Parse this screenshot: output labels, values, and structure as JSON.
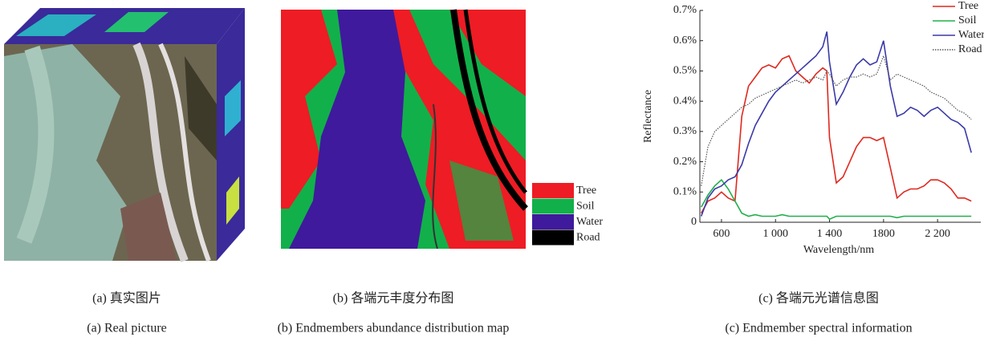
{
  "chart_data": {
    "type": "line",
    "x_label": "Wavelength/nm",
    "y_label": "Reflectance",
    "x": [
      450,
      500,
      550,
      600,
      650,
      700,
      750,
      800,
      850,
      900,
      950,
      1000,
      1050,
      1100,
      1150,
      1200,
      1250,
      1300,
      1350,
      1380,
      1400,
      1450,
      1500,
      1550,
      1600,
      1650,
      1700,
      1750,
      1800,
      1850,
      1900,
      1950,
      2000,
      2050,
      2100,
      2150,
      2200,
      2250,
      2300,
      2350,
      2400,
      2450
    ],
    "series": [
      {
        "name": "Tree",
        "color": "#e0281e",
        "style": "solid",
        "values": [
          0.03,
          0.07,
          0.08,
          0.1,
          0.08,
          0.07,
          0.35,
          0.45,
          0.48,
          0.51,
          0.52,
          0.51,
          0.54,
          0.55,
          0.5,
          0.48,
          0.46,
          0.49,
          0.51,
          0.5,
          0.28,
          0.13,
          0.15,
          0.2,
          0.25,
          0.28,
          0.28,
          0.27,
          0.28,
          0.18,
          0.08,
          0.1,
          0.11,
          0.11,
          0.12,
          0.14,
          0.14,
          0.13,
          0.11,
          0.08,
          0.08,
          0.07
        ]
      },
      {
        "name": "Soil",
        "color": "#20b04a",
        "style": "solid",
        "values": [
          0.05,
          0.09,
          0.12,
          0.14,
          0.11,
          0.07,
          0.03,
          0.02,
          0.025,
          0.02,
          0.02,
          0.02,
          0.025,
          0.02,
          0.02,
          0.02,
          0.02,
          0.02,
          0.02,
          0.02,
          0.01,
          0.02,
          0.02,
          0.02,
          0.02,
          0.02,
          0.02,
          0.02,
          0.02,
          0.02,
          0.015,
          0.02,
          0.02,
          0.02,
          0.02,
          0.02,
          0.02,
          0.02,
          0.02,
          0.02,
          0.02,
          0.02
        ]
      },
      {
        "name": "Water",
        "color": "#3a3aa8",
        "style": "solid",
        "values": [
          0.02,
          0.08,
          0.11,
          0.12,
          0.14,
          0.15,
          0.19,
          0.26,
          0.32,
          0.36,
          0.4,
          0.43,
          0.45,
          0.47,
          0.49,
          0.51,
          0.53,
          0.55,
          0.58,
          0.63,
          0.53,
          0.39,
          0.43,
          0.48,
          0.52,
          0.54,
          0.52,
          0.53,
          0.6,
          0.45,
          0.35,
          0.36,
          0.38,
          0.37,
          0.35,
          0.37,
          0.38,
          0.36,
          0.34,
          0.33,
          0.31,
          0.23
        ]
      },
      {
        "name": "Road",
        "color": "#555555",
        "style": "dotted",
        "values": [
          0.12,
          0.25,
          0.3,
          0.32,
          0.34,
          0.36,
          0.38,
          0.39,
          0.41,
          0.42,
          0.43,
          0.44,
          0.45,
          0.46,
          0.47,
          0.46,
          0.47,
          0.48,
          0.47,
          0.5,
          0.49,
          0.45,
          0.47,
          0.48,
          0.48,
          0.49,
          0.48,
          0.49,
          0.55,
          0.47,
          0.49,
          0.48,
          0.47,
          0.46,
          0.45,
          0.43,
          0.42,
          0.41,
          0.39,
          0.37,
          0.36,
          0.34
        ]
      }
    ],
    "xlim": [
      440,
      2520
    ],
    "xticks": [
      600,
      {
        "value": 1000,
        "label": "1 000"
      },
      {
        "value": 1400,
        "label": "1 400"
      },
      1800,
      {
        "value": 2200,
        "label": "2 200"
      }
    ],
    "ylim": [
      0,
      0.7
    ],
    "yticks": [
      0,
      {
        "value": 0.1,
        "label": "0.1%"
      },
      {
        "value": 0.2,
        "label": "0.2%"
      },
      {
        "value": 0.3,
        "label": "0.3%"
      },
      {
        "value": 0.4,
        "label": "0.4%"
      },
      {
        "value": 0.5,
        "label": "0.5%"
      },
      {
        "value": 0.6,
        "label": "0.6%"
      },
      {
        "value": 0.7,
        "label": "0.7%"
      }
    ],
    "grid": false,
    "legend": "upper right"
  },
  "abundance_map": {
    "legend": [
      {
        "label": "Tree",
        "color": "#ee1c24"
      },
      {
        "label": "Soil",
        "color": "#12b04a"
      },
      {
        "label": "Water",
        "color": "#3f1a9c"
      },
      {
        "label": "Road",
        "color": "#000000"
      }
    ]
  },
  "captions": [
    {
      "chinese": "(a) 真实图片",
      "english": "(a) Real picture"
    },
    {
      "chinese": "(b) 各端元丰度分布图",
      "english": "(b) Endmembers abundance distribution map"
    },
    {
      "chinese": "(c) 各端元光谱信息图",
      "english": "(c) Endmember spectral information"
    }
  ]
}
